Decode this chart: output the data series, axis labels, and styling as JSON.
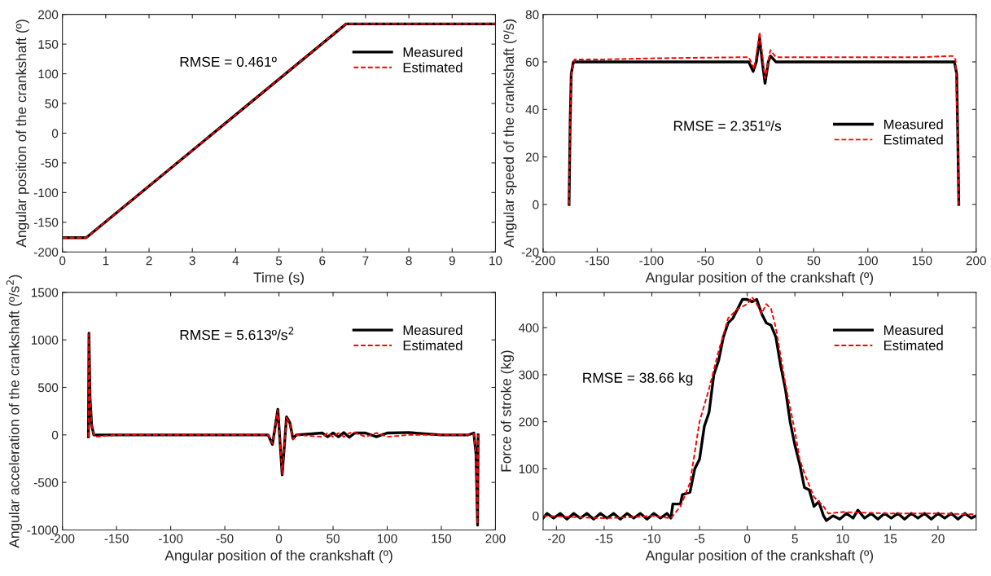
{
  "chart_data": [
    {
      "type": "line",
      "xlabel": "Time (s)",
      "ylabel": "Angular position of the crankshaft (º)",
      "xlim": [
        0,
        10
      ],
      "xticks": [
        0,
        1,
        2,
        3,
        4,
        5,
        6,
        7,
        8,
        9,
        10
      ],
      "ylim": [
        -200,
        200
      ],
      "yticks": [
        -200,
        -150,
        -100,
        -50,
        0,
        50,
        100,
        150,
        200
      ],
      "grid": false,
      "legend": "top right",
      "annotations": [
        "RMSE = 0.461º"
      ],
      "series": [
        {
          "name": "Measured",
          "color": "#000000",
          "line_style": "solid",
          "x": [
            0,
            0.55,
            6.55,
            10
          ],
          "values": [
            -176,
            -176,
            184,
            184
          ]
        },
        {
          "name": "Estimated",
          "color": "#ff0000",
          "line_style": "dashed",
          "x": [
            0,
            0.55,
            6.55,
            10
          ],
          "values": [
            -176,
            -176,
            184,
            184
          ]
        }
      ]
    },
    {
      "type": "line",
      "xlabel": "Angular position of the crankshaft (º)",
      "ylabel": "Angular speed of the crankshaft (º/s)",
      "xlim": [
        -200,
        200
      ],
      "xticks": [
        -200,
        -150,
        -100,
        -50,
        0,
        50,
        100,
        150,
        200
      ],
      "ylim": [
        -20,
        80
      ],
      "yticks": [
        -20,
        0,
        20,
        40,
        60,
        80
      ],
      "grid": false,
      "legend": "right",
      "annotations": [
        "RMSE = 2.351º/s"
      ],
      "series": [
        {
          "name": "Measured",
          "color": "#000000",
          "line_style": "solid",
          "x": [
            -176,
            -175,
            -174,
            -172,
            -150,
            -100,
            -50,
            -10,
            -6,
            -3,
            0,
            2.5,
            5,
            8,
            10,
            15,
            50,
            100,
            150,
            180,
            182,
            183,
            184
          ],
          "values": [
            0,
            35,
            55,
            60,
            60,
            60,
            60,
            60,
            56,
            60,
            70,
            60,
            51,
            60,
            62.5,
            60,
            60,
            60,
            60,
            60,
            55,
            30,
            0
          ]
        },
        {
          "name": "Estimated",
          "color": "#ff0000",
          "line_style": "dashed",
          "x": [
            -176,
            -175,
            -174,
            -171,
            -150,
            -100,
            -50,
            -10,
            -5,
            0,
            5,
            10,
            15,
            50,
            100,
            150,
            178,
            181,
            183,
            184
          ],
          "values": [
            0,
            35,
            55,
            61,
            61,
            61.5,
            61.8,
            62,
            57,
            72.5,
            53,
            65,
            62,
            62,
            62,
            62,
            62.5,
            61,
            30,
            0
          ]
        }
      ]
    },
    {
      "type": "line",
      "xlabel": "Angular position of the crankshaft (º)",
      "ylabel": "Angular acceleration of the crankshaft (º/s$^{2}$)",
      "xlim": [
        -200,
        200
      ],
      "xticks": [
        -200,
        -150,
        -100,
        -50,
        0,
        50,
        100,
        150,
        200
      ],
      "ylim": [
        -1000,
        1500
      ],
      "yticks": [
        -1000,
        -500,
        0,
        500,
        1000,
        1500
      ],
      "grid": false,
      "legend": "top right",
      "annotations": [
        "RMSE = 5.613º/s$^{2}$"
      ],
      "series": [
        {
          "name": "Measured",
          "color": "#000000",
          "line_style": "solid",
          "x": [
            -176,
            -175.5,
            -174.5,
            -173,
            -171,
            -169,
            -150,
            -120,
            -90,
            -60,
            -30,
            -10,
            -6,
            -1,
            3,
            7,
            10,
            13,
            16,
            40,
            45,
            50,
            55,
            60,
            65,
            70,
            80,
            90,
            100,
            120,
            150,
            175,
            180,
            182,
            183.5,
            184
          ],
          "values": [
            -20,
            1070,
            400,
            100,
            0,
            0,
            0,
            0,
            0,
            0,
            0,
            0,
            -100,
            270,
            -420,
            190,
            130,
            -40,
            0,
            20,
            -20,
            20,
            -20,
            25,
            -25,
            20,
            20,
            -20,
            20,
            25,
            0,
            0,
            20,
            -200,
            -950,
            0
          ]
        },
        {
          "name": "Estimated",
          "color": "#ff0000",
          "line_style": "dashed",
          "x": [
            -176,
            -175.5,
            -174.5,
            -173,
            -171,
            -169,
            -150,
            -120,
            -90,
            -60,
            -30,
            -10,
            -6,
            -1,
            3,
            7,
            10,
            13,
            16,
            40,
            45,
            50,
            55,
            60,
            65,
            70,
            80,
            90,
            100,
            120,
            150,
            175,
            180,
            182,
            183.5,
            184
          ],
          "values": [
            -20,
            1060,
            400,
            100,
            0,
            -20,
            0,
            0,
            0,
            0,
            0,
            0,
            -90,
            260,
            -410,
            180,
            120,
            -50,
            0,
            -20,
            20,
            -20,
            20,
            -20,
            20,
            25,
            -20,
            20,
            -20,
            0,
            0,
            0,
            10,
            -200,
            -940,
            0
          ]
        }
      ]
    },
    {
      "type": "line",
      "xlabel": "Angular position of the crankshaft (º)",
      "ylabel": "Force of stroke (kg)",
      "xlim": [
        -21.4,
        24
      ],
      "xticks": [
        -20,
        -15,
        -10,
        -5,
        0,
        5,
        10,
        15,
        20
      ],
      "ylim": [
        -30,
        475
      ],
      "yticks": [
        0,
        100,
        200,
        300,
        400
      ],
      "grid": false,
      "legend": "top right",
      "annotations": [
        "RMSE = 38.66 kg"
      ],
      "series": [
        {
          "name": "Measured",
          "color": "#000000",
          "line_style": "solid",
          "x": [
            -21.4,
            -21,
            -20.3,
            -19.6,
            -18.9,
            -18.2,
            -17.5,
            -16.8,
            -16.1,
            -15.4,
            -14.7,
            -14,
            -13.3,
            -12.6,
            -11.9,
            -11.2,
            -10.5,
            -9.8,
            -9.1,
            -8.4,
            -8,
            -7.8,
            -7,
            -6.8,
            -6,
            -5.5,
            -5,
            -4.5,
            -4,
            -3.5,
            -3,
            -2.5,
            -2,
            -1.5,
            -1,
            -0.5,
            0,
            0.5,
            1,
            1.5,
            2,
            2.5,
            3,
            3.5,
            4,
            4.5,
            5,
            5.5,
            6,
            6.5,
            7,
            7.5,
            8,
            8.3,
            9,
            9.7,
            10.4,
            11.1,
            11.6,
            12.3,
            13,
            13.7,
            14.4,
            15.1,
            15.8,
            16.5,
            17.2,
            17.9,
            18.6,
            19.3,
            20,
            20.7,
            21.4,
            22.1,
            22.8,
            23.5,
            24
          ],
          "values": [
            -5,
            5,
            -5,
            5,
            -7,
            5,
            -5,
            5,
            -7,
            5,
            -5,
            5,
            -7,
            5,
            -5,
            5,
            -7,
            5,
            -5,
            5,
            -5,
            25,
            25,
            45,
            50,
            100,
            120,
            190,
            220,
            300,
            330,
            380,
            410,
            420,
            440,
            460,
            460,
            455,
            460,
            430,
            410,
            405,
            380,
            320,
            270,
            200,
            150,
            110,
            60,
            55,
            20,
            30,
            0,
            -10,
            0,
            -7,
            5,
            -5,
            12,
            -5,
            5,
            -7,
            5,
            -5,
            5,
            -7,
            5,
            -5,
            5,
            -7,
            5,
            -5,
            5,
            -7,
            5,
            -5,
            0
          ]
        },
        {
          "name": "Estimated",
          "color": "#ff0000",
          "line_style": "dashed",
          "x": [
            -21.4,
            -18,
            -15,
            -12,
            -10,
            -8,
            -7,
            -6,
            -5,
            -4,
            -3,
            -2,
            -1,
            0,
            0.5,
            1,
            1.5,
            2,
            2.5,
            3,
            3.5,
            4,
            4.5,
            5,
            5.5,
            6,
            7,
            8,
            8.5,
            10,
            15,
            20,
            24
          ],
          "values": [
            0,
            -3,
            -5,
            -3,
            0,
            -5,
            20,
            70,
            200,
            270,
            350,
            420,
            440,
            450,
            465,
            450,
            430,
            450,
            440,
            400,
            340,
            280,
            230,
            180,
            120,
            90,
            40,
            20,
            5,
            8,
            5,
            5,
            3
          ]
        }
      ]
    }
  ]
}
